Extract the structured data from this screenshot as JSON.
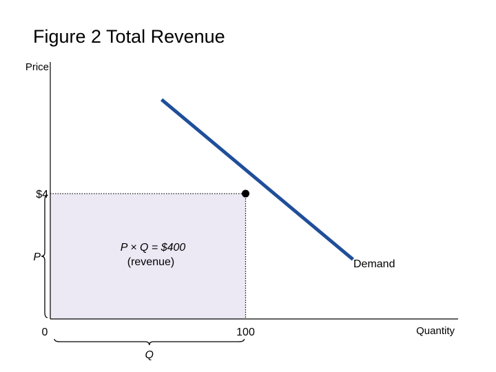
{
  "chart_data": {
    "type": "line",
    "title": "Figure 2 Total Revenue",
    "ylabel": "Price",
    "xlabel": "Quantity",
    "x_ticks": [
      "0",
      "100"
    ],
    "y_ticks": [
      "$4"
    ],
    "price_label": "P",
    "quantity_label": "Q",
    "xlim": [
      0,
      200
    ],
    "ylim": [
      0,
      8.2
    ],
    "series": [
      {
        "name": "Demand",
        "points": [
          [
            57,
            7.0
          ],
          [
            155,
            1.9
          ]
        ],
        "color": "#1f4e9a"
      }
    ],
    "highlight_point": {
      "x": 100,
      "y": 4
    },
    "revenue_area": {
      "x": [
        0,
        100
      ],
      "y": [
        0,
        4
      ],
      "fill": "#ece8f4"
    },
    "annotation": {
      "line1": "P × Q = $400",
      "line2": "(revenue)"
    },
    "grid": false
  }
}
